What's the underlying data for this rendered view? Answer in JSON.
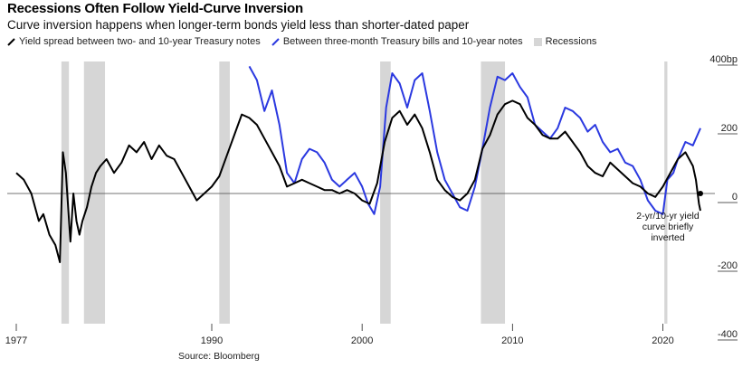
{
  "title": "Recessions Often Follow Yield-Curve Inversion",
  "subtitle": "Curve inversion happens when longer-term bonds yield less than shorter-dated paper",
  "legend": {
    "series1": "Yield spread between two- and 10-year Treasury notes",
    "series2": "Between three-month Treasury bills and 10-year notes",
    "recessions": "Recessions"
  },
  "source": "Source: Bloomberg",
  "colors": {
    "series1": "#000000",
    "series2": "#2b39e0",
    "recession": "#d6d6d6",
    "axis": "#222222"
  },
  "chart_data": {
    "type": "line",
    "title": "Recessions Often Follow Yield-Curve Inversion",
    "xlabel": "",
    "ylabel": "",
    "xlim": [
      1977,
      2022.8
    ],
    "ylim": [
      -400,
      400
    ],
    "y_ticks": [
      400,
      200,
      0,
      -200,
      -400
    ],
    "y_tick_labels": [
      "400bp",
      "200",
      "0",
      "-200",
      "-400"
    ],
    "x_ticks": [
      1977,
      1990,
      2000,
      2010,
      2020
    ],
    "x_tick_labels": [
      "1977",
      "1990",
      "2000",
      "2010",
      "2020"
    ],
    "recessions": [
      [
        1980.0,
        1980.5
      ],
      [
        1981.5,
        1982.9
      ],
      [
        1990.5,
        1991.2
      ],
      [
        2001.2,
        2001.9
      ],
      [
        2007.9,
        2009.5
      ],
      [
        2020.1,
        2020.3
      ]
    ],
    "series": [
      {
        "name": "Yield spread between two- and 10-year Treasury notes",
        "x": [
          1977.0,
          1977.5,
          1978.0,
          1978.5,
          1978.8,
          1979.2,
          1979.6,
          1979.9,
          1980.1,
          1980.3,
          1980.6,
          1980.8,
          1981.0,
          1981.2,
          1981.4,
          1981.7,
          1982.0,
          1982.3,
          1982.6,
          1983.0,
          1983.5,
          1984.0,
          1984.5,
          1985.0,
          1985.5,
          1986.0,
          1986.5,
          1987.0,
          1987.5,
          1988.0,
          1988.5,
          1989.0,
          1989.5,
          1990.0,
          1990.5,
          1991.0,
          1991.5,
          1992.0,
          1992.5,
          1993.0,
          1993.5,
          1994.0,
          1994.5,
          1995.0,
          1995.5,
          1996.0,
          1996.5,
          1997.0,
          1997.5,
          1998.0,
          1998.5,
          1999.0,
          1999.5,
          2000.0,
          2000.5,
          2001.0,
          2001.5,
          2002.0,
          2002.5,
          2003.0,
          2003.5,
          2004.0,
          2004.5,
          2005.0,
          2005.5,
          2006.0,
          2006.5,
          2007.0,
          2007.5,
          2008.0,
          2008.5,
          2009.0,
          2009.5,
          2010.0,
          2010.5,
          2011.0,
          2011.5,
          2012.0,
          2012.5,
          2013.0,
          2013.5,
          2014.0,
          2014.5,
          2015.0,
          2015.5,
          2016.0,
          2016.5,
          2017.0,
          2017.5,
          2018.0,
          2018.5,
          2019.0,
          2019.5,
          2020.0,
          2020.5,
          2021.0,
          2021.5,
          2022.0,
          2022.2,
          2022.4,
          2022.5
        ],
        "values": [
          60,
          40,
          0,
          -80,
          -60,
          -120,
          -150,
          -200,
          120,
          60,
          -140,
          0,
          -80,
          -120,
          -80,
          -40,
          20,
          60,
          80,
          100,
          60,
          90,
          140,
          120,
          150,
          100,
          140,
          110,
          100,
          60,
          20,
          -20,
          0,
          20,
          50,
          110,
          170,
          230,
          220,
          200,
          160,
          120,
          80,
          20,
          30,
          40,
          30,
          20,
          10,
          10,
          0,
          10,
          0,
          -20,
          -30,
          30,
          150,
          220,
          240,
          200,
          230,
          190,
          120,
          40,
          10,
          -10,
          -20,
          0,
          40,
          130,
          170,
          230,
          260,
          270,
          260,
          220,
          200,
          170,
          160,
          160,
          180,
          150,
          120,
          80,
          60,
          50,
          90,
          70,
          50,
          30,
          20,
          0,
          -10,
          20,
          60,
          100,
          120,
          80,
          40,
          -30,
          -50
        ]
      },
      {
        "name": "Between three-month Treasury bills and 10-year notes",
        "x": [
          1992.5,
          1993.0,
          1993.5,
          1994.0,
          1994.5,
          1995.0,
          1995.5,
          1996.0,
          1996.5,
          1997.0,
          1997.5,
          1998.0,
          1998.5,
          1999.0,
          1999.5,
          2000.0,
          2000.4,
          2000.8,
          2001.2,
          2001.6,
          2002.0,
          2002.5,
          2003.0,
          2003.5,
          2004.0,
          2004.5,
          2005.0,
          2005.5,
          2006.0,
          2006.5,
          2007.0,
          2007.5,
          2008.0,
          2008.5,
          2009.0,
          2009.5,
          2010.0,
          2010.5,
          2011.0,
          2011.5,
          2012.0,
          2012.5,
          2013.0,
          2013.5,
          2014.0,
          2014.5,
          2015.0,
          2015.5,
          2016.0,
          2016.5,
          2017.0,
          2017.5,
          2018.0,
          2018.5,
          2019.0,
          2019.5,
          2020.0,
          2020.3,
          2020.7,
          2021.0,
          2021.5,
          2022.0,
          2022.3,
          2022.5
        ],
        "values": [
          370,
          330,
          240,
          300,
          200,
          60,
          30,
          100,
          130,
          120,
          90,
          40,
          20,
          40,
          60,
          20,
          -30,
          -60,
          20,
          250,
          350,
          320,
          250,
          330,
          350,
          240,
          120,
          40,
          0,
          -40,
          -50,
          20,
          130,
          250,
          340,
          330,
          350,
          310,
          280,
          200,
          180,
          160,
          190,
          250,
          240,
          220,
          180,
          200,
          150,
          120,
          130,
          90,
          80,
          40,
          -20,
          -50,
          -60,
          40,
          60,
          100,
          150,
          140,
          170,
          190
        ]
      }
    ],
    "annotations": [
      {
        "text_lines": [
          "2-yr/10-yr yield",
          "curve briefly",
          "inverted"
        ],
        "x": 2022.5,
        "y": -40
      }
    ]
  }
}
